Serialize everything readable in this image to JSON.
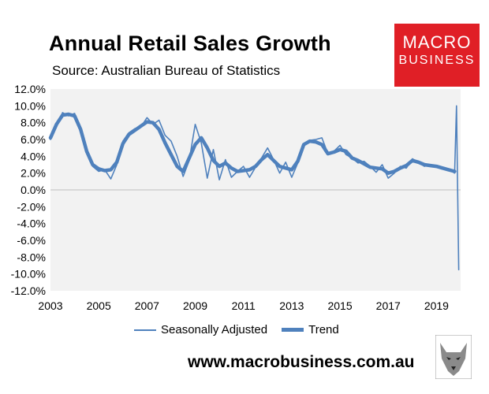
{
  "header": {
    "title": "Annual Retail Sales Growth",
    "subtitle": "Source: Australian Bureau of Statistics"
  },
  "brand": {
    "logo_line1": "MACRO",
    "logo_line2": "BUSINESS",
    "logo_color": "#e01f26",
    "website": "www.macrobusiness.com.au",
    "mascot_icon": "wolf-head-icon"
  },
  "chart_data": {
    "type": "line",
    "title": "Annual Retail Sales Growth",
    "xlabel": "",
    "ylabel": "",
    "xlim": [
      2003.0,
      2020.0
    ],
    "ylim": [
      -12,
      12
    ],
    "x_ticks": [
      "2003",
      "2005",
      "2007",
      "2009",
      "2011",
      "2013",
      "2015",
      "2017",
      "2019"
    ],
    "y_ticks": [
      "12.0%",
      "10.0%",
      "8.0%",
      "6.0%",
      "4.0%",
      "2.0%",
      "0.0%",
      "-2.0%",
      "-4.0%",
      "-6.0%",
      "-8.0%",
      "-10.0%",
      "-12.0%"
    ],
    "grid": false,
    "plot_background": "#f2f2f2",
    "legend_position": "bottom",
    "series": [
      {
        "name": "Seasonally Adjusted",
        "color": "#4f81bd",
        "style": "thin",
        "x": [
          2003.0,
          2003.25,
          2003.5,
          2003.75,
          2004.0,
          2004.25,
          2004.5,
          2004.75,
          2005.0,
          2005.25,
          2005.5,
          2005.75,
          2006.0,
          2006.25,
          2006.5,
          2006.75,
          2007.0,
          2007.25,
          2007.5,
          2007.75,
          2008.0,
          2008.25,
          2008.5,
          2008.75,
          2009.0,
          2009.25,
          2009.5,
          2009.75,
          2010.0,
          2010.25,
          2010.5,
          2010.75,
          2011.0,
          2011.25,
          2011.5,
          2011.75,
          2012.0,
          2012.25,
          2012.5,
          2012.75,
          2013.0,
          2013.25,
          2013.5,
          2013.75,
          2014.0,
          2014.25,
          2014.5,
          2014.75,
          2015.0,
          2015.25,
          2015.5,
          2015.75,
          2016.0,
          2016.25,
          2016.5,
          2016.75,
          2017.0,
          2017.25,
          2017.5,
          2017.75,
          2018.0,
          2018.25,
          2018.5,
          2018.75,
          2019.0,
          2019.25,
          2019.5,
          2019.75,
          2019.83,
          2019.92
        ],
        "values": [
          6.0,
          7.5,
          9.2,
          8.8,
          9.1,
          7.0,
          4.5,
          2.8,
          2.2,
          2.4,
          1.3,
          3.0,
          5.8,
          6.8,
          7.3,
          7.5,
          8.6,
          7.8,
          8.3,
          6.5,
          5.8,
          4.0,
          1.6,
          3.5,
          7.8,
          5.6,
          1.4,
          4.8,
          1.2,
          3.6,
          1.5,
          2.2,
          2.8,
          1.5,
          2.7,
          3.8,
          5.0,
          3.6,
          2.0,
          3.3,
          1.5,
          3.2,
          5.5,
          5.9,
          6.0,
          6.2,
          4.3,
          4.6,
          5.3,
          4.2,
          3.8,
          3.2,
          3.4,
          2.8,
          2.1,
          3.0,
          1.4,
          2.0,
          2.8,
          2.6,
          3.7,
          3.3,
          2.8,
          3.0,
          2.9,
          2.6,
          2.5,
          2.0,
          10.0,
          -9.5
        ]
      },
      {
        "name": "Trend",
        "color": "#4f81bd",
        "style": "thick",
        "x": [
          2003.0,
          2003.25,
          2003.5,
          2003.75,
          2004.0,
          2004.25,
          2004.5,
          2004.75,
          2005.0,
          2005.25,
          2005.5,
          2005.75,
          2006.0,
          2006.25,
          2006.5,
          2006.75,
          2007.0,
          2007.25,
          2007.5,
          2007.75,
          2008.0,
          2008.25,
          2008.5,
          2008.75,
          2009.0,
          2009.25,
          2009.5,
          2009.75,
          2010.0,
          2010.25,
          2010.5,
          2010.75,
          2011.0,
          2011.25,
          2011.5,
          2011.75,
          2012.0,
          2012.25,
          2012.5,
          2012.75,
          2013.0,
          2013.25,
          2013.5,
          2013.75,
          2014.0,
          2014.25,
          2014.5,
          2014.75,
          2015.0,
          2015.25,
          2015.5,
          2015.75,
          2016.0,
          2016.25,
          2016.5,
          2016.75,
          2017.0,
          2017.25,
          2017.5,
          2017.75,
          2018.0,
          2018.25,
          2018.5,
          2018.75,
          2019.0,
          2019.25,
          2019.5,
          2019.75
        ],
        "values": [
          6.2,
          7.8,
          8.9,
          9.0,
          8.8,
          7.2,
          4.6,
          3.0,
          2.5,
          2.3,
          2.4,
          3.3,
          5.5,
          6.6,
          7.1,
          7.6,
          8.1,
          8.0,
          7.2,
          5.6,
          4.2,
          2.8,
          2.2,
          3.8,
          5.4,
          6.2,
          5.0,
          3.5,
          2.8,
          3.2,
          2.6,
          2.2,
          2.3,
          2.4,
          2.8,
          3.6,
          4.2,
          3.5,
          2.8,
          2.6,
          2.4,
          3.4,
          5.4,
          5.8,
          5.7,
          5.4,
          4.3,
          4.5,
          4.8,
          4.6,
          3.8,
          3.5,
          3.1,
          2.7,
          2.6,
          2.5,
          2.0,
          2.2,
          2.6,
          2.9,
          3.5,
          3.3,
          3.0,
          2.9,
          2.8,
          2.6,
          2.4,
          2.2
        ]
      }
    ]
  }
}
